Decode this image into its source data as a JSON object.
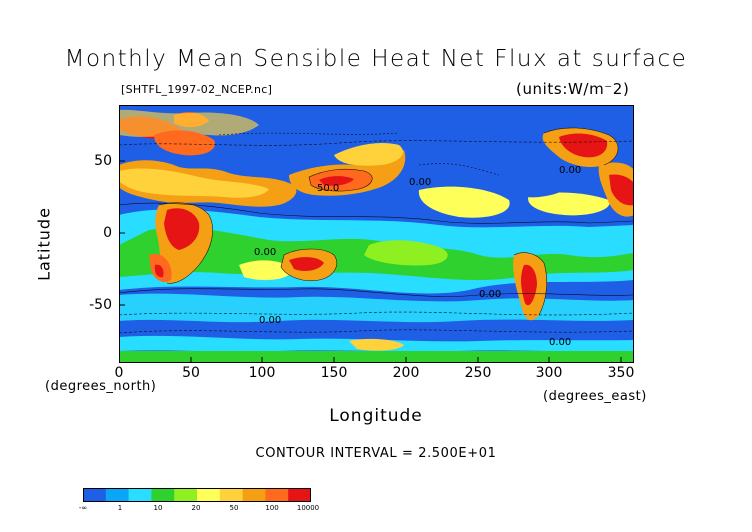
{
  "title": "Monthly Mean Sensible Heat Net Flux at surface",
  "file_label": "[SHTFL_1997-02_NCEP.nc]",
  "units_label": "(units:W/m^2)",
  "ylabel": "Latitude",
  "ylabel_units": "(degrees_north)",
  "xlabel": "Longitude",
  "xlabel_units": "(degrees_east)",
  "contour_text": "CONTOUR INTERVAL = 2.500E+01",
  "x_ticks": [
    "0",
    "50",
    "100",
    "150",
    "200",
    "250",
    "300",
    "350"
  ],
  "y_ticks": [
    "50",
    "0",
    "-50"
  ],
  "contour_labels": [
    "0.00",
    "50.0",
    "0.00",
    "0.00",
    "0.00",
    "0.00",
    "0.00"
  ],
  "colorbar": {
    "labels": [
      "-∞",
      "1",
      "10",
      "20",
      "50",
      "100",
      "10000"
    ],
    "colors": [
      "#1f5fe6",
      "#0aa6f5",
      "#28ddff",
      "#2fd12f",
      "#8ef020",
      "#ffff5a",
      "#ffd23c",
      "#f5a014",
      "#ff6a1e",
      "#e61414"
    ]
  },
  "chart_data": {
    "type": "heatmap",
    "title": "Monthly Mean Sensible Heat Net Flux at surface",
    "xlabel": "Longitude",
    "ylabel": "Latitude",
    "xlim": [
      0,
      360
    ],
    "ylim": [
      -90,
      90
    ],
    "units": "W/m^2",
    "contour_interval": 25,
    "levels": [
      1,
      10,
      20,
      50,
      100,
      10000
    ]
  }
}
